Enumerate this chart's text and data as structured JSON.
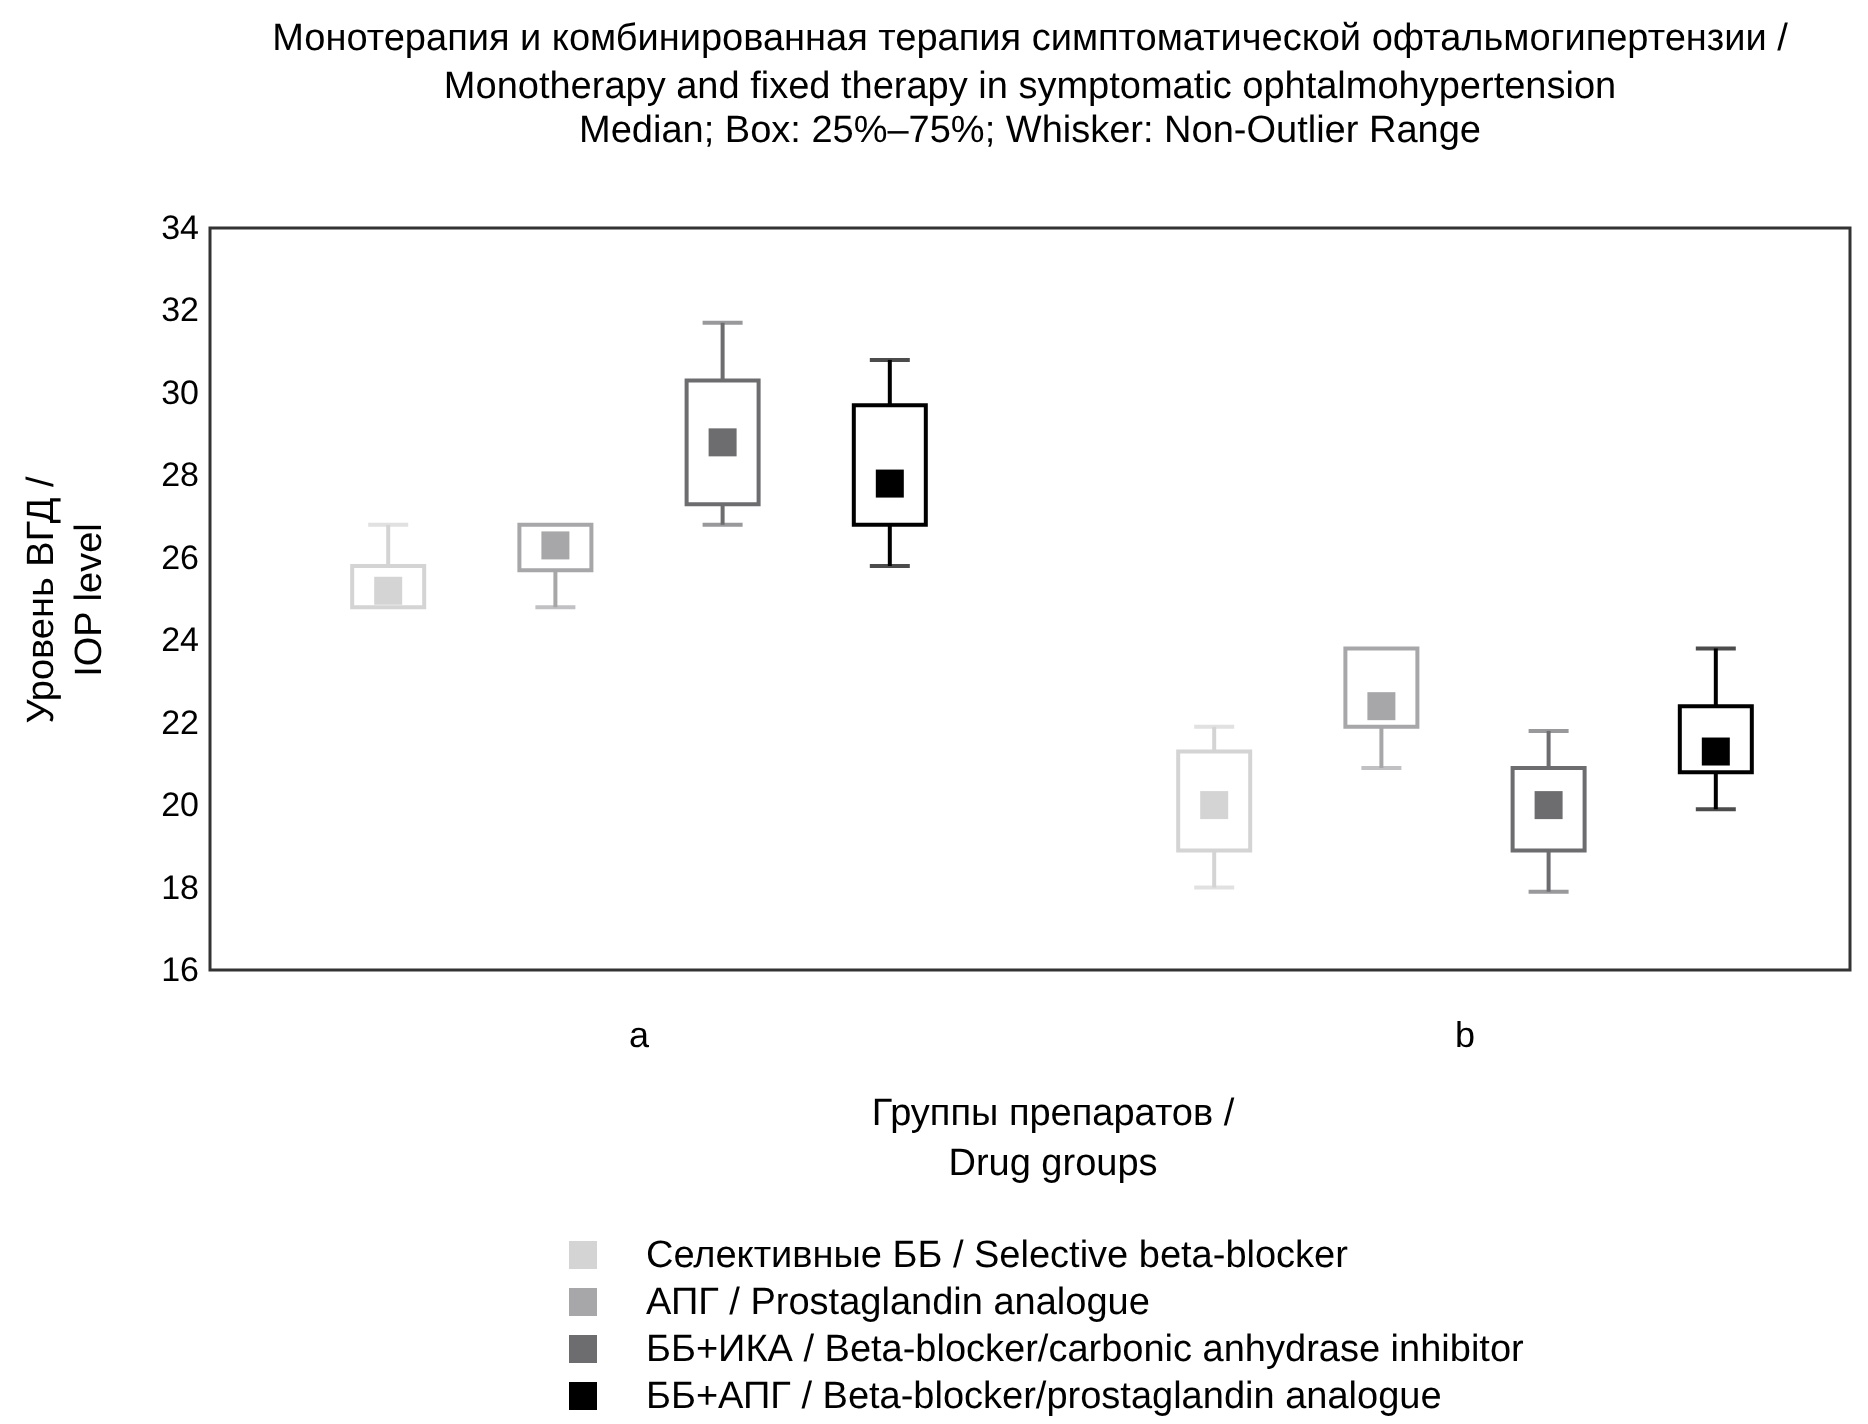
{
  "chart_data": {
    "type": "box",
    "title": "Монотерапия и комбинированная терапия симптоматической офтальмогипертензии /\nMonotherapy and fixed therapy in symptomatic ophtalmohypertension",
    "subtitle": "Median; Box: 25%–75%; Whisker: Non-Outlier Range",
    "xlabel": "Группы препаратов /\nDrug groups",
    "ylabel": "Уровень ВГД /\nIOP level",
    "categories": [
      "a",
      "b"
    ],
    "series": [
      {
        "name": "Селективные ББ / Selective beta-blocker",
        "color": "#d4d4d4",
        "boxes": [
          {
            "low": 24.8,
            "q1": 24.8,
            "median": 25.2,
            "q3": 25.8,
            "high": 26.8
          },
          {
            "low": 18.0,
            "q1": 18.9,
            "median": 20.0,
            "q3": 21.3,
            "high": 21.9
          }
        ]
      },
      {
        "name": "АПГ / Prostaglandin analogue",
        "color": "#a7a7a9",
        "boxes": [
          {
            "low": 24.8,
            "q1": 25.7,
            "median": 26.3,
            "q3": 26.8,
            "high": 26.8
          },
          {
            "low": 20.9,
            "q1": 21.9,
            "median": 22.4,
            "q3": 23.8,
            "high": 23.8
          }
        ]
      },
      {
        "name": "ББ+ИКА / Beta-blocker/carbonic anhydrase inhibitor",
        "color": "#6d6d70",
        "boxes": [
          {
            "low": 26.8,
            "q1": 27.3,
            "median": 28.8,
            "q3": 30.3,
            "high": 31.7
          },
          {
            "low": 17.9,
            "q1": 18.9,
            "median": 20.0,
            "q3": 20.9,
            "high": 21.8
          }
        ]
      },
      {
        "name": "ББ+АПГ / Beta-blocker/prostaglandin analogue",
        "color": "#000000",
        "boxes": [
          {
            "low": 25.8,
            "q1": 26.8,
            "median": 27.8,
            "q3": 29.7,
            "high": 30.8
          },
          {
            "low": 19.9,
            "q1": 20.8,
            "median": 21.3,
            "q3": 22.4,
            "high": 23.8
          }
        ]
      }
    ],
    "ylim": [
      16,
      34
    ],
    "yticks": [
      16,
      18,
      20,
      22,
      24,
      26,
      28,
      30,
      32,
      34
    ],
    "grid": false,
    "legend": "bottom",
    "marker": "square"
  }
}
